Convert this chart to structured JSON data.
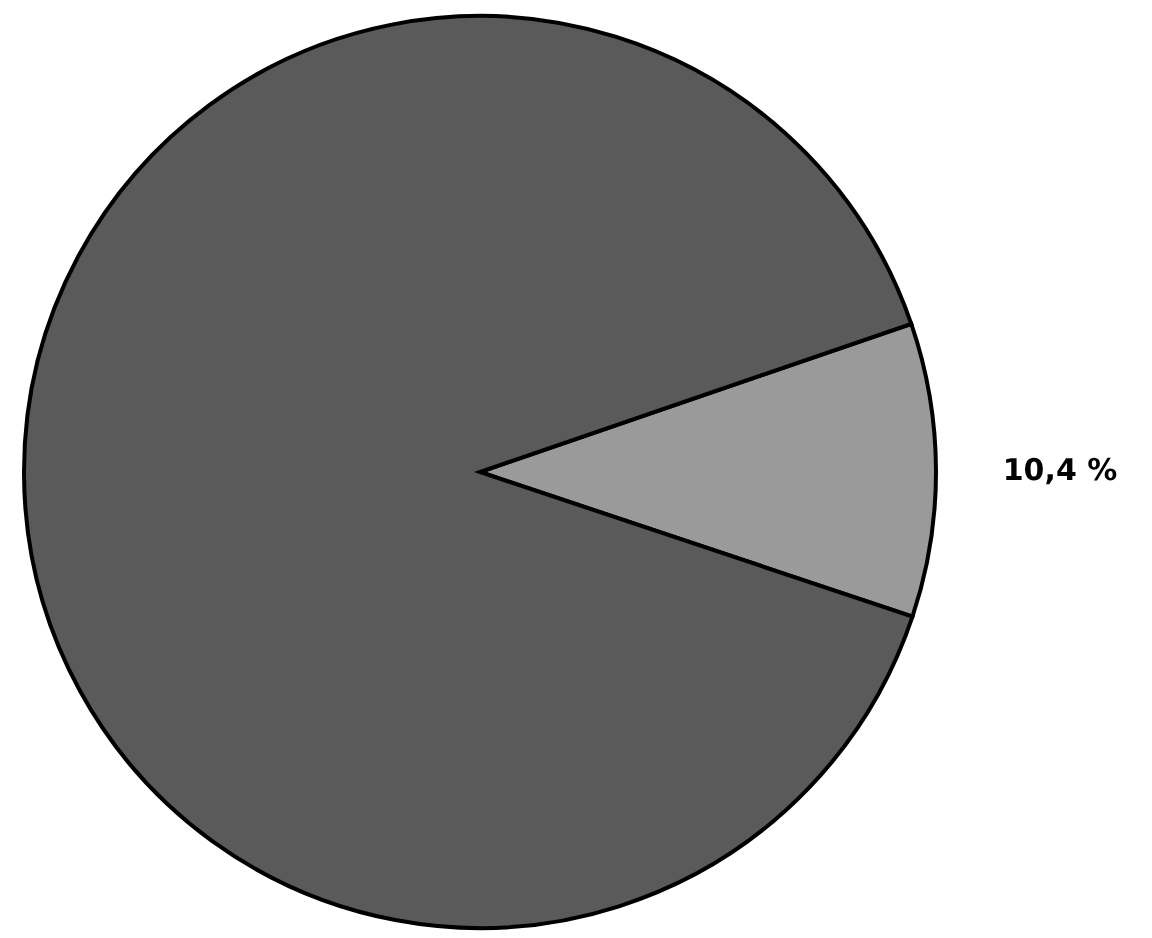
{
  "chart_data": {
    "type": "pie",
    "categories": [
      null,
      null
    ],
    "values": [
      10.4,
      89.6
    ],
    "colors": [
      "#9a9a9a",
      "#5a5a5a"
    ],
    "value_labels": [
      "10,4 %",
      null
    ]
  }
}
